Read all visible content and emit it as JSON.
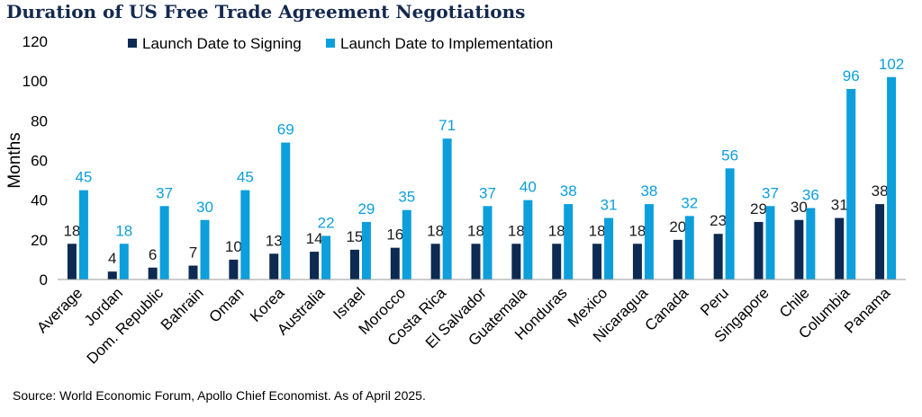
{
  "title": "Duration of US Free Trade Agreement Negotiations",
  "source": "Source: World Economic Forum, Apollo Chief Economist. As of April 2025.",
  "colors": {
    "signing": "#0d2a52",
    "implementation": "#0c9fdc",
    "title": "#14294f"
  },
  "chart_data": {
    "type": "bar",
    "ylabel": "Months",
    "ylim": [
      0,
      120
    ],
    "yticks": [
      0,
      20,
      40,
      60,
      80,
      100,
      120
    ],
    "grid": false,
    "legend_position": "top",
    "categories": [
      "Average",
      "Jordan",
      "Dom. Republic",
      "Bahrain",
      "Oman",
      "Korea",
      "Australia",
      "Israel",
      "Morocco",
      "Costa Rica",
      "El Salvador",
      "Guatemala",
      "Honduras",
      "Mexico",
      "Nicaragua",
      "Canada",
      "Peru",
      "Singapore",
      "Chile",
      "Columbia",
      "Panama"
    ],
    "series": [
      {
        "name": "Launch Date to Signing",
        "values": [
          18,
          4,
          6,
          7,
          10,
          13,
          14,
          15,
          16,
          18,
          18,
          18,
          18,
          18,
          18,
          20,
          23,
          29,
          30,
          31,
          38
        ]
      },
      {
        "name": "Launch Date to Implementation",
        "values": [
          45,
          18,
          37,
          30,
          45,
          69,
          22,
          29,
          35,
          71,
          37,
          40,
          38,
          31,
          38,
          32,
          56,
          37,
          36,
          96,
          102
        ]
      }
    ]
  }
}
